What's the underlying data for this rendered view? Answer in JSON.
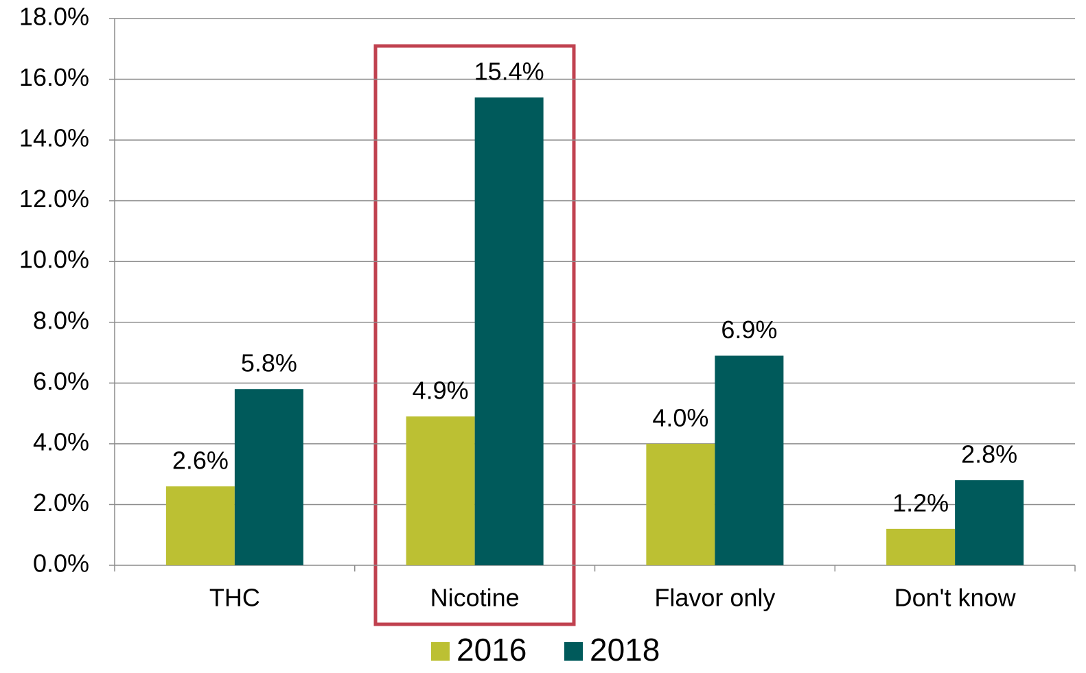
{
  "chart_data": {
    "type": "bar",
    "categories": [
      "THC",
      "Nicotine",
      "Flavor only",
      "Don't know"
    ],
    "series": [
      {
        "name": "2016",
        "color": "#bcc033",
        "values": [
          2.6,
          4.9,
          4.0,
          1.2
        ],
        "value_labels": [
          "2.6%",
          "4.9%",
          "4.0%",
          "1.2%"
        ]
      },
      {
        "name": "2018",
        "color": "#005a5b",
        "values": [
          5.8,
          15.4,
          6.9,
          2.8
        ],
        "value_labels": [
          "5.8%",
          "15.4%",
          "6.9%",
          "2.8%"
        ]
      }
    ],
    "ylim": [
      0,
      18
    ],
    "yticks": [
      {
        "value": 0,
        "label": "0.0%"
      },
      {
        "value": 2,
        "label": "2.0%"
      },
      {
        "value": 4,
        "label": "4.0%"
      },
      {
        "value": 6,
        "label": "6.0%"
      },
      {
        "value": 8,
        "label": "8.0%"
      },
      {
        "value": 10,
        "label": "10.0%"
      },
      {
        "value": 12,
        "label": "12.0%"
      },
      {
        "value": 14,
        "label": "14.0%"
      },
      {
        "value": 16,
        "label": "16.0%"
      },
      {
        "value": 18,
        "label": "18.0%"
      }
    ],
    "grid": true,
    "legend": "bottom"
  }
}
